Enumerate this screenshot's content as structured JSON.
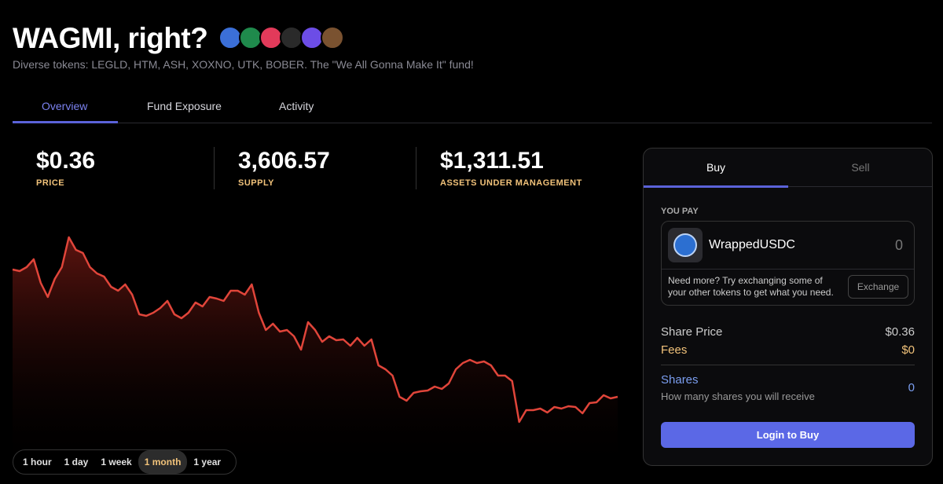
{
  "header": {
    "title": "WAGMI, right?",
    "subtitle": "Diverse tokens: LEGLD, HTM, ASH, XOXNO, UTK, BOBER. The \"We All Gonna Make It\" fund!"
  },
  "tabs": [
    "Overview",
    "Fund Exposure",
    "Activity"
  ],
  "stats": [
    {
      "value": "$0.36",
      "label": "PRICE"
    },
    {
      "value": "3,606.57",
      "label": "SUPPLY"
    },
    {
      "value": "$1,311.51",
      "label": "ASSETS UNDER MANAGEMENT"
    }
  ],
  "chart_data": {
    "type": "line",
    "color": "#e0453a",
    "ylim": [
      0,
      340
    ],
    "values": [
      257,
      255,
      260,
      270,
      240,
      222,
      245,
      260,
      298,
      282,
      278,
      260,
      252,
      248,
      235,
      230,
      238,
      225,
      200,
      198,
      202,
      208,
      217,
      200,
      195,
      202,
      215,
      210,
      222,
      220,
      217,
      230,
      230,
      225,
      238,
      202,
      180,
      188,
      178,
      180,
      172,
      155,
      190,
      180,
      165,
      172,
      167,
      168,
      160,
      170,
      160,
      168,
      135,
      130,
      122,
      95,
      90,
      100,
      102,
      103,
      108,
      105,
      112,
      130,
      138,
      142,
      138,
      140,
      135,
      122,
      122,
      115,
      63,
      78,
      78,
      80,
      75,
      82,
      80,
      83,
      82,
      74,
      87,
      88,
      97,
      93,
      95
    ]
  },
  "ranges": [
    "1 hour",
    "1 day",
    "1 week",
    "1 month",
    "1 year"
  ],
  "trade": {
    "tabs": [
      "Buy",
      "Sell"
    ],
    "pay_label": "YOU PAY",
    "token": "WrappedUSDC",
    "amount": "0",
    "hint": "Need more? Try exchanging some of your other tokens to get what you need.",
    "exchange": "Exchange",
    "share_price_label": "Share Price",
    "share_price": "$0.36",
    "fees_label": "Fees",
    "fees": "$0",
    "shares_label": "Shares",
    "shares_hint": "How many shares you will receive",
    "shares": "0",
    "button": "Login to Buy"
  }
}
